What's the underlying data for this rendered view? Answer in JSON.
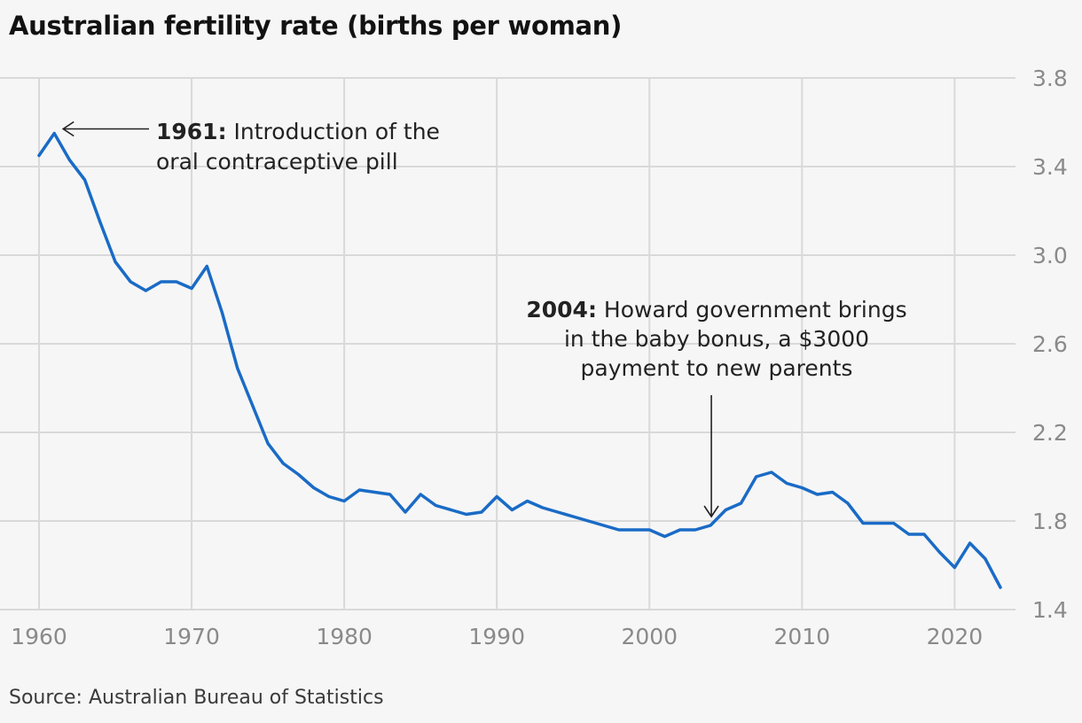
{
  "chart_data": {
    "type": "line",
    "title": "Australian fertility rate (births per woman)",
    "source": "Source: Australian Bureau of Statistics",
    "xlim": [
      1960,
      2023
    ],
    "ylim": [
      1.4,
      3.8
    ],
    "x_ticks": [
      1960,
      1970,
      1980,
      1990,
      2000,
      2010,
      2020
    ],
    "y_ticks": [
      1.4,
      1.8,
      2.2,
      2.6,
      3.0,
      3.4,
      3.8
    ],
    "grid": true,
    "series": [
      {
        "color": "#1a6bc6",
        "x": [
          1960,
          1961,
          1962,
          1963,
          1964,
          1965,
          1966,
          1967,
          1968,
          1969,
          1970,
          1971,
          1972,
          1973,
          1974,
          1975,
          1976,
          1977,
          1978,
          1979,
          1980,
          1981,
          1982,
          1983,
          1984,
          1985,
          1986,
          1987,
          1988,
          1989,
          1990,
          1991,
          1992,
          1993,
          1994,
          1995,
          1996,
          1997,
          1998,
          1999,
          2000,
          2001,
          2002,
          2003,
          2004,
          2005,
          2006,
          2007,
          2008,
          2009,
          2010,
          2011,
          2012,
          2013,
          2014,
          2015,
          2016,
          2017,
          2018,
          2019,
          2020,
          2021,
          2022,
          2023
        ],
        "values": [
          3.45,
          3.55,
          3.43,
          3.34,
          3.15,
          2.97,
          2.88,
          2.84,
          2.88,
          2.88,
          2.85,
          2.95,
          2.74,
          2.49,
          2.32,
          2.15,
          2.06,
          2.01,
          1.95,
          1.91,
          1.89,
          1.94,
          1.93,
          1.92,
          1.84,
          1.92,
          1.87,
          1.85,
          1.83,
          1.84,
          1.91,
          1.85,
          1.89,
          1.86,
          1.84,
          1.82,
          1.8,
          1.78,
          1.76,
          1.76,
          1.76,
          1.73,
          1.76,
          1.76,
          1.78,
          1.85,
          1.88,
          2.0,
          2.02,
          1.97,
          1.95,
          1.92,
          1.93,
          1.88,
          1.79,
          1.79,
          1.79,
          1.74,
          1.74,
          1.66,
          1.59,
          1.7,
          1.63,
          1.5
        ]
      }
    ],
    "annotations": [
      {
        "year": 1961,
        "value": 3.55,
        "bold": "1961:",
        "lines": [
          " Introduction of the",
          "oral contraceptive pill"
        ]
      },
      {
        "year": 2004,
        "value": 1.78,
        "bold": "2004:",
        "lines": [
          " Howard government brings",
          "in the baby bonus, a $3000",
          "payment to new parents"
        ]
      }
    ]
  }
}
